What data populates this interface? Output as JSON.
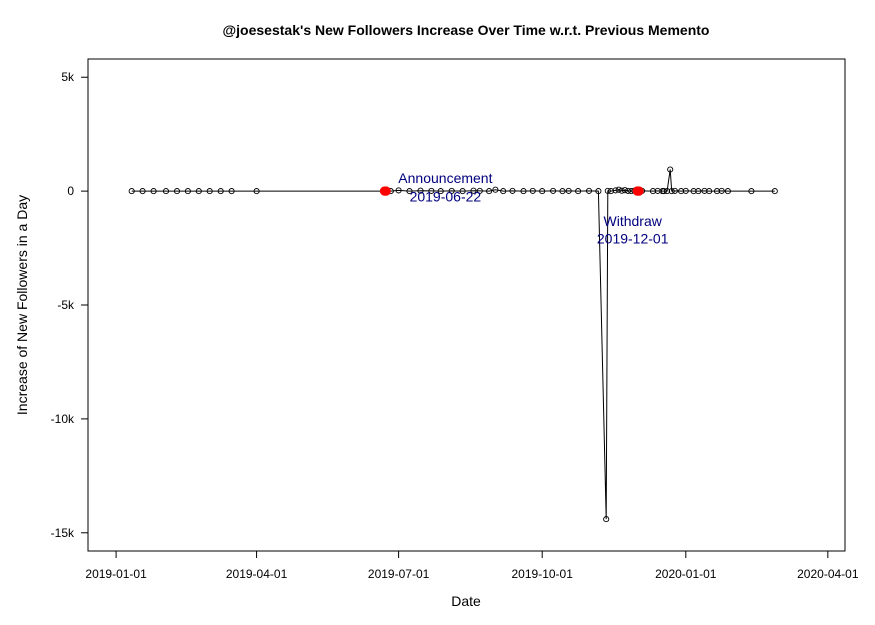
{
  "chart_data": {
    "type": "scatter",
    "title": "@joesestak's New Followers Increase Over Time w.r.t. Previous Memento",
    "xlabel": "Date",
    "ylabel": "Increase of New Followers in a Day",
    "x_ticks": [
      "2019-01-01",
      "2019-04-01",
      "2019-07-01",
      "2019-10-01",
      "2020-01-01",
      "2020-04-01"
    ],
    "y_ticks": [
      {
        "value": 5000,
        "label": "5k"
      },
      {
        "value": 0,
        "label": "0"
      },
      {
        "value": -5000,
        "label": "-5k"
      },
      {
        "value": -10000,
        "label": "-10k"
      },
      {
        "value": -15000,
        "label": "-15k"
      }
    ],
    "xlim": [
      "2018-12-14",
      "2020-04-12"
    ],
    "ylim": [
      -15800,
      5800
    ],
    "grid": false,
    "line_color": "#000000",
    "point_color": "#000000",
    "highlight_color": "#ff0000",
    "annotation_color": "#00007f",
    "series": [
      {
        "points": [
          {
            "x": "2019-01-11",
            "y": 0
          },
          {
            "x": "2019-01-18",
            "y": 0
          },
          {
            "x": "2019-01-25",
            "y": 0
          },
          {
            "x": "2019-02-02",
            "y": 0
          },
          {
            "x": "2019-02-09",
            "y": 0
          },
          {
            "x": "2019-02-16",
            "y": 0
          },
          {
            "x": "2019-02-23",
            "y": 0
          },
          {
            "x": "2019-03-02",
            "y": 0
          },
          {
            "x": "2019-03-09",
            "y": 0
          },
          {
            "x": "2019-03-16",
            "y": 0
          },
          {
            "x": "2019-04-01",
            "y": 0
          },
          {
            "x": "2019-06-21",
            "y": 0
          },
          {
            "x": "2019-06-22",
            "y": 0
          },
          {
            "x": "2019-06-23",
            "y": 0
          },
          {
            "x": "2019-06-26",
            "y": 0
          },
          {
            "x": "2019-07-01",
            "y": 30
          },
          {
            "x": "2019-07-08",
            "y": 0
          },
          {
            "x": "2019-07-15",
            "y": 20
          },
          {
            "x": "2019-07-22",
            "y": 10
          },
          {
            "x": "2019-07-28",
            "y": 0
          },
          {
            "x": "2019-08-04",
            "y": 10
          },
          {
            "x": "2019-08-11",
            "y": 0
          },
          {
            "x": "2019-08-18",
            "y": 20
          },
          {
            "x": "2019-08-22",
            "y": 10
          },
          {
            "x": "2019-08-28",
            "y": 0
          },
          {
            "x": "2019-09-01",
            "y": 60
          },
          {
            "x": "2019-09-06",
            "y": 0
          },
          {
            "x": "2019-09-12",
            "y": 10
          },
          {
            "x": "2019-09-19",
            "y": 0
          },
          {
            "x": "2019-09-25",
            "y": 10
          },
          {
            "x": "2019-10-01",
            "y": 0
          },
          {
            "x": "2019-10-08",
            "y": 10
          },
          {
            "x": "2019-10-14",
            "y": 0
          },
          {
            "x": "2019-10-18",
            "y": 10
          },
          {
            "x": "2019-10-24",
            "y": 0
          },
          {
            "x": "2019-10-31",
            "y": 10
          },
          {
            "x": "2019-11-06",
            "y": 0
          },
          {
            "x": "2019-11-11",
            "y": -14400
          },
          {
            "x": "2019-11-12",
            "y": 10
          },
          {
            "x": "2019-11-14",
            "y": 0
          },
          {
            "x": "2019-11-17",
            "y": 30
          },
          {
            "x": "2019-11-19",
            "y": 60
          },
          {
            "x": "2019-11-21",
            "y": 20
          },
          {
            "x": "2019-11-23",
            "y": 40
          },
          {
            "x": "2019-11-25",
            "y": 10
          },
          {
            "x": "2019-11-27",
            "y": 0
          },
          {
            "x": "2019-11-29",
            "y": 20
          },
          {
            "x": "2019-12-01",
            "y": 0
          },
          {
            "x": "2019-12-02",
            "y": 0
          },
          {
            "x": "2019-12-04",
            "y": 10
          },
          {
            "x": "2019-12-11",
            "y": 0
          },
          {
            "x": "2019-12-14",
            "y": 10
          },
          {
            "x": "2019-12-17",
            "y": 0
          },
          {
            "x": "2019-12-18",
            "y": 0
          },
          {
            "x": "2019-12-20",
            "y": 0
          },
          {
            "x": "2019-12-22",
            "y": 950
          },
          {
            "x": "2019-12-23",
            "y": 0
          },
          {
            "x": "2019-12-25",
            "y": 10
          },
          {
            "x": "2019-12-29",
            "y": 0
          },
          {
            "x": "2020-01-01",
            "y": 10
          },
          {
            "x": "2020-01-06",
            "y": 0
          },
          {
            "x": "2020-01-09",
            "y": 0
          },
          {
            "x": "2020-01-13",
            "y": 10
          },
          {
            "x": "2020-01-16",
            "y": 0
          },
          {
            "x": "2020-01-21",
            "y": 0
          },
          {
            "x": "2020-01-24",
            "y": 10
          },
          {
            "x": "2020-01-28",
            "y": 0
          },
          {
            "x": "2020-02-12",
            "y": 0
          },
          {
            "x": "2020-02-27",
            "y": 0
          }
        ]
      }
    ],
    "highlights": [
      {
        "x": "2019-06-22",
        "y": 0
      },
      {
        "x": "2019-06-23",
        "y": 0
      },
      {
        "x": "2019-12-01",
        "y": 0
      },
      {
        "x": "2019-12-02",
        "y": 0
      }
    ],
    "annotations": [
      {
        "lines": [
          "Announcement",
          "2019-06-22"
        ],
        "x": "2019-07-31",
        "y_lines": [
          570,
          -230
        ]
      },
      {
        "lines": [
          "Withdraw",
          "2019-12-01"
        ],
        "x": "2019-11-28",
        "y_lines": [
          -1310,
          -2090
        ]
      }
    ]
  }
}
